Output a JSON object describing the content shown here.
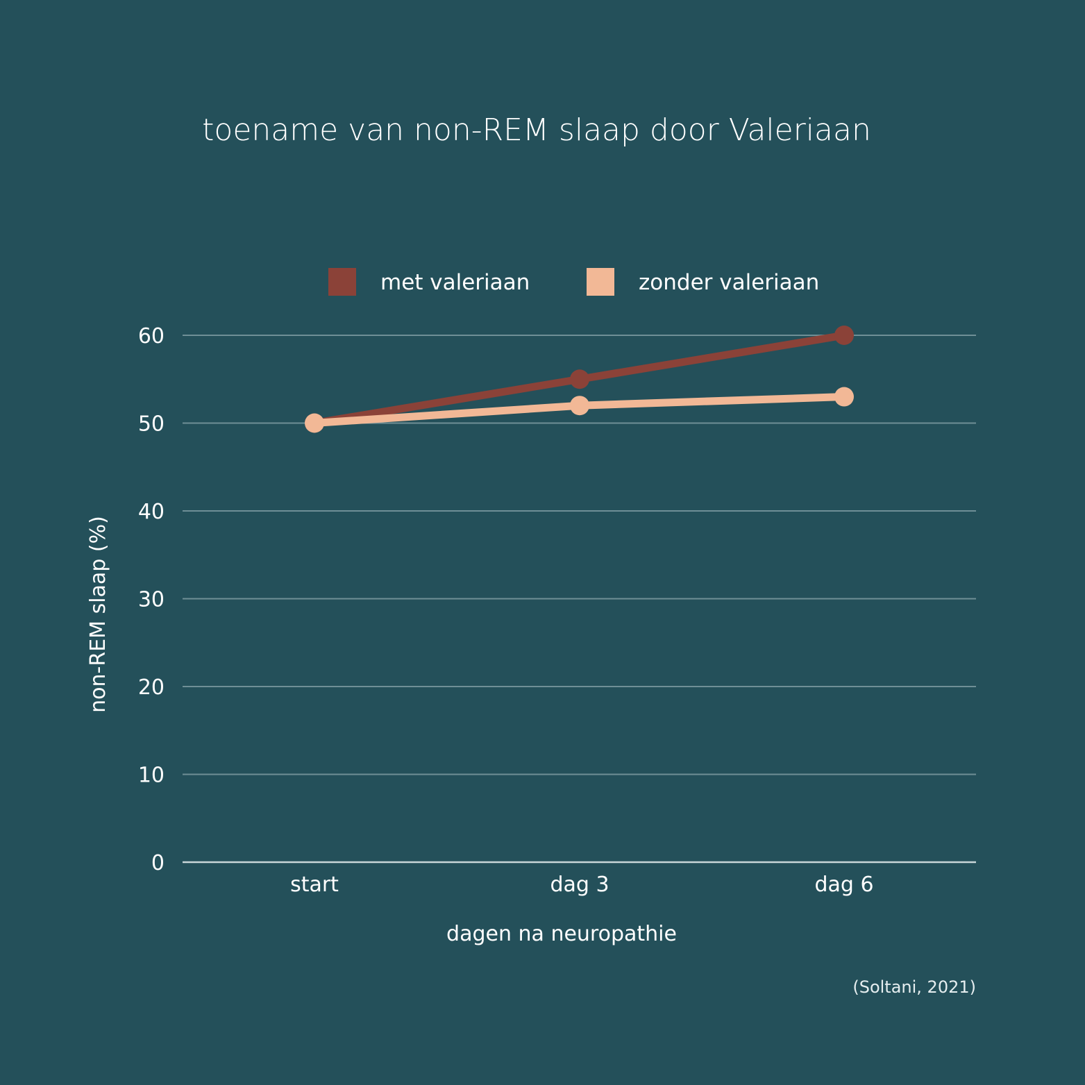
{
  "colors": {
    "background": "#24505a",
    "grid": "#6f8f96"
  },
  "source": "(Soltani, 2021)",
  "chart_data": {
    "type": "line",
    "title": "toename van non-REM slaap door Valeriaan",
    "xlabel": "dagen na neuropathie",
    "ylabel": "non-REM slaap (%)",
    "categories": [
      "start",
      "dag 3",
      "dag 6"
    ],
    "ylim": [
      0,
      60
    ],
    "yticks": [
      0,
      10,
      20,
      30,
      40,
      50,
      60
    ],
    "grid": true,
    "legend_position": "top-center",
    "series": [
      {
        "name": "met valeriaan",
        "color": "#8b4238",
        "values": [
          50,
          55,
          60
        ]
      },
      {
        "name": "zonder valeriaan",
        "color": "#f2b896",
        "values": [
          50,
          52,
          53
        ]
      }
    ]
  }
}
